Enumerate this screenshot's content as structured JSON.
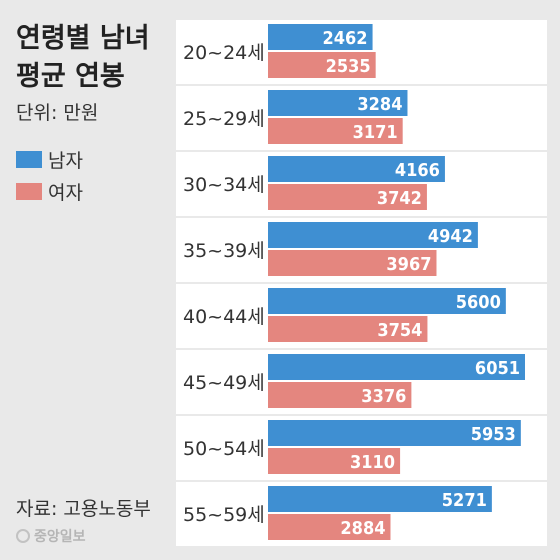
{
  "header": {
    "title_line1": "연령별 남녀",
    "title_line2": "평균 연봉",
    "unit": "단위: 만원"
  },
  "legend": [
    {
      "label": "남자",
      "color": "#3f8fd2"
    },
    {
      "label": "여자",
      "color": "#e4867f"
    }
  ],
  "footer": {
    "source": "자료: 고용노동부",
    "credit": "중앙일보"
  },
  "chart_data": {
    "type": "bar",
    "orientation": "horizontal",
    "categories": [
      "20~24세",
      "25~29세",
      "30~34세",
      "35~39세",
      "40~44세",
      "45~49세",
      "50~54세",
      "55~59세"
    ],
    "series": [
      {
        "name": "남자",
        "color": "#3f8fd2",
        "values": [
          2462,
          3284,
          4166,
          4942,
          5600,
          6051,
          5953,
          5271
        ]
      },
      {
        "name": "여자",
        "color": "#e4867f",
        "values": [
          2535,
          3171,
          3742,
          3967,
          3754,
          3376,
          3110,
          2884
        ]
      }
    ],
    "title": "연령별 남녀 평균 연봉",
    "unit": "만원",
    "legend_position": "left"
  }
}
